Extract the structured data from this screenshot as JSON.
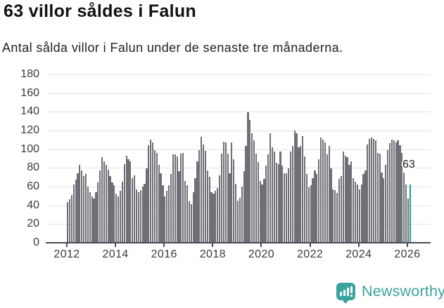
{
  "header": {
    "title": "63 villor såldes i Falun",
    "subtitle": "Antal sålda villor i Falun under de senaste tre månaderna."
  },
  "chart_data": {
    "type": "bar",
    "title": "63 villor såldes i Falun",
    "subtitle": "Antal sålda villor i Falun under de senaste tre månaderna.",
    "x_start": "2012-01",
    "x_end": "2026-02",
    "x_freq": "monthly",
    "x_tick_labels": [
      "2012",
      "2014",
      "2016",
      "2018",
      "2020",
      "2022",
      "2024",
      "2026"
    ],
    "y_ticks": [
      0,
      20,
      40,
      60,
      80,
      100,
      120,
      140,
      160,
      180
    ],
    "ylim": [
      0,
      180
    ],
    "grid": "horizontal",
    "legend": "none",
    "bar_color": "#6f6f77",
    "highlight_color": "#149e98",
    "highlight_index_from_end": 1,
    "annotation": {
      "text": "63",
      "value": 63
    },
    "values": [
      44,
      47,
      52,
      63,
      68,
      75,
      84,
      78,
      72,
      74,
      61,
      55,
      50,
      48,
      55,
      65,
      78,
      92,
      88,
      84,
      79,
      72,
      65,
      62,
      53,
      50,
      56,
      66,
      85,
      94,
      90,
      88,
      70,
      73,
      58,
      55,
      57,
      61,
      64,
      80,
      105,
      111,
      108,
      100,
      97,
      84,
      75,
      62,
      50,
      56,
      62,
      74,
      95,
      95,
      93,
      77,
      96,
      97,
      67,
      62,
      45,
      42,
      55,
      70,
      88,
      100,
      114,
      106,
      99,
      78,
      71,
      55,
      53,
      56,
      59,
      73,
      96,
      109,
      108,
      96,
      75,
      108,
      90,
      64,
      46,
      49,
      61,
      77,
      104,
      140,
      132,
      118,
      110,
      96,
      87,
      67,
      63,
      69,
      83,
      95,
      118,
      103,
      98,
      86,
      85,
      98,
      83,
      75,
      75,
      80,
      98,
      104,
      121,
      118,
      103,
      104,
      115,
      93,
      74,
      60,
      62,
      70,
      78,
      74,
      90,
      113,
      111,
      108,
      95,
      104,
      80,
      58,
      57,
      54,
      69,
      72,
      98,
      94,
      92,
      84,
      88,
      70,
      66,
      63,
      58,
      63,
      74,
      78,
      106,
      112,
      113,
      112,
      110,
      97,
      96,
      76,
      70,
      84,
      100,
      107,
      111,
      110,
      108,
      110,
      105,
      97,
      76,
      63,
      48,
      63
    ]
  },
  "footer": {
    "brand": "Newsworthy"
  }
}
